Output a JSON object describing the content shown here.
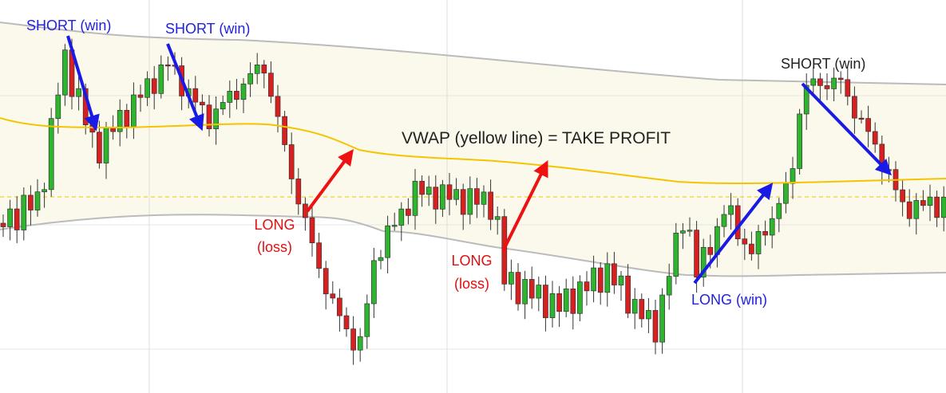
{
  "annotations": {
    "short_1": "SHORT (win)",
    "short_2": "SHORT (win)",
    "short_3": "SHORT (win)",
    "vwap": "VWAP (yellow line) = TAKE PROFIT",
    "long_loss_1": [
      "LONG",
      "(loss)"
    ],
    "long_loss_2": [
      "LONG",
      "(loss)"
    ],
    "long_win": "LONG (win)"
  }
}
